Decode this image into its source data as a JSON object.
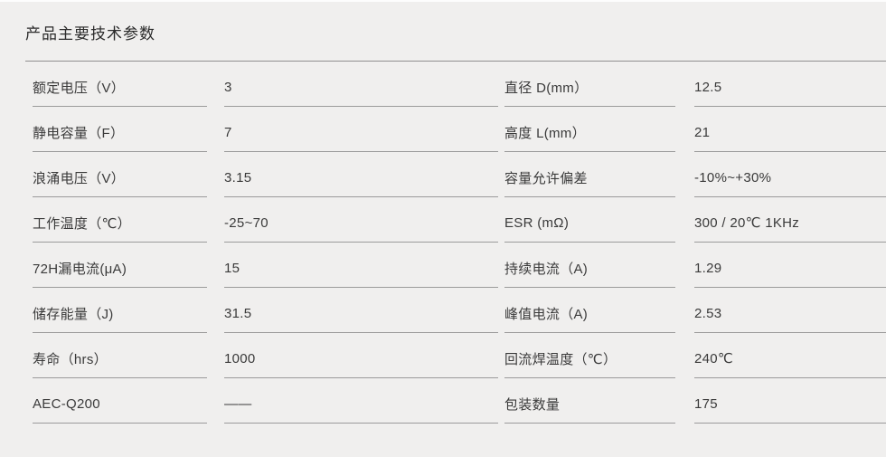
{
  "page": {
    "title": "产品主要技术参数"
  },
  "colors": {
    "background": "#f0efee",
    "text": "#3a3a3a",
    "title_text": "#2a2a2a",
    "row_line": "#9b9b9b",
    "title_line": "#8f8f8f"
  },
  "table": {
    "rows": [
      {
        "left_label": "额定电压（V）",
        "left_value": "3",
        "right_label": "直径 D(mm）",
        "right_value": "12.5"
      },
      {
        "left_label": "静电容量（F）",
        "left_value": "7",
        "right_label": "高度 L(mm）",
        "right_value": "21"
      },
      {
        "left_label": "浪涌电压（V）",
        "left_value": "3.15",
        "right_label": "容量允许偏差",
        "right_value": "-10%~+30%"
      },
      {
        "left_label": "工作温度（℃）",
        "left_value": "-25~70",
        "right_label": "ESR (mΩ)",
        "right_value": "300 / 20℃ 1KHz"
      },
      {
        "left_label": "72H漏电流(μA)",
        "left_value": "15",
        "right_label": "持续电流（A)",
        "right_value": "1.29"
      },
      {
        "left_label": "储存能量（J)",
        "left_value": "31.5",
        "right_label": "峰值电流（A)",
        "right_value": "2.53"
      },
      {
        "left_label": "寿命（hrs）",
        "left_value": "1000",
        "right_label": "回流焊温度（℃）",
        "right_value": "240℃"
      },
      {
        "left_label": "AEC-Q200",
        "left_value": "——",
        "right_label": "包装数量",
        "right_value": "175"
      }
    ]
  }
}
